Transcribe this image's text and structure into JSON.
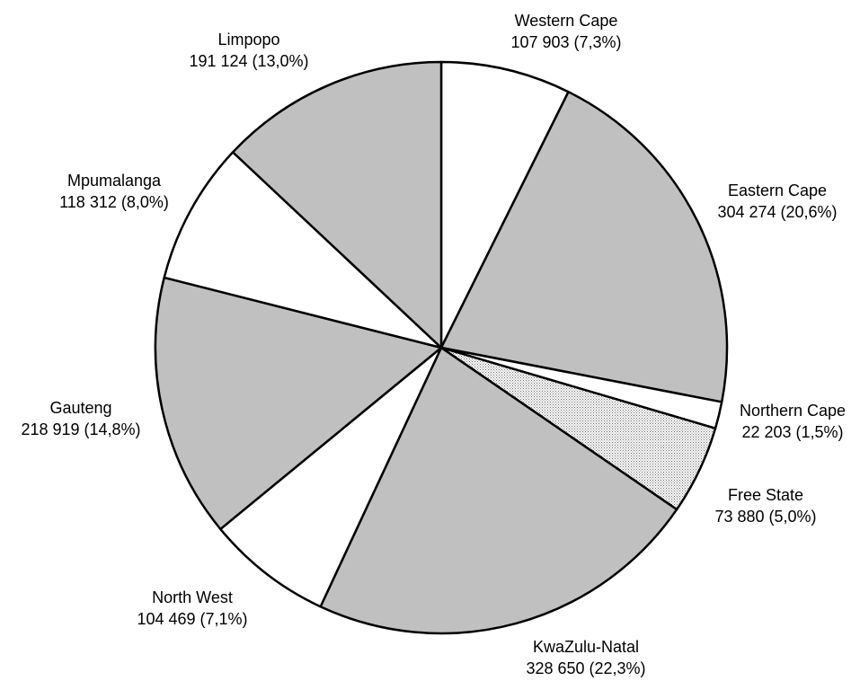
{
  "chart_data": {
    "type": "pie",
    "start_angle_deg": 0,
    "direction": "clockwise",
    "legend": "none",
    "slices": [
      {
        "name": "Western Cape",
        "value": 107903,
        "label": "107 903 (7,3%)",
        "fill": "white"
      },
      {
        "name": "Eastern Cape",
        "value": 304274,
        "label": "304 274 (20,6%)",
        "fill": "gray"
      },
      {
        "name": "Northern Cape",
        "value": 22203,
        "label": "22 203 (1,5%)",
        "fill": "white"
      },
      {
        "name": "Free State",
        "value": 73880,
        "label": "73 880 (5,0%)",
        "fill": "dotted"
      },
      {
        "name": "KwaZulu-Natal",
        "value": 328650,
        "label": "328 650 (22,3%)",
        "fill": "gray"
      },
      {
        "name": "North West",
        "value": 104469,
        "label": "104 469 (7,1%)",
        "fill": "white"
      },
      {
        "name": "Gauteng",
        "value": 218919,
        "label": "218 919 (14,8%)",
        "fill": "gray"
      },
      {
        "name": "Mpumalanga",
        "value": 118312,
        "label": "118 312 (8,0%)",
        "fill": "white"
      },
      {
        "name": "Limpopo",
        "value": 191124,
        "label": "191 124 (13,0%)",
        "fill": "gray"
      }
    ]
  },
  "colors": {
    "gray": "#c0c0c0",
    "white": "#ffffff",
    "outline": "#000000",
    "dot": "#6e6e6e"
  }
}
